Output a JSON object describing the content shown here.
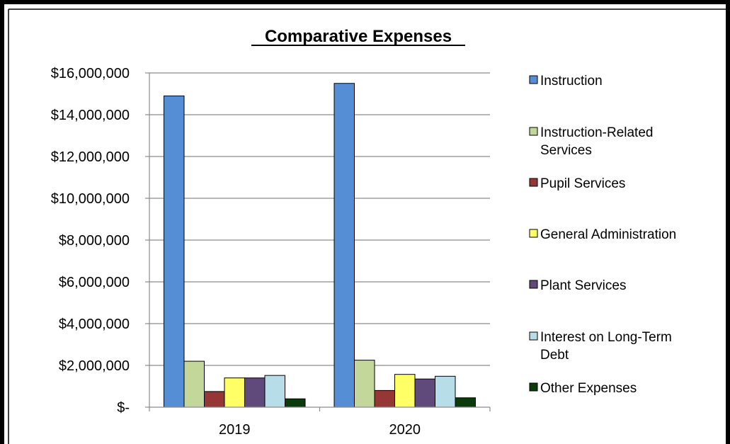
{
  "chart_data": {
    "type": "bar",
    "title": "Comparative Expenses",
    "categories": [
      "2019",
      "2020"
    ],
    "ylim": [
      0,
      16000000
    ],
    "yticks": [
      0,
      2000000,
      4000000,
      6000000,
      8000000,
      10000000,
      12000000,
      14000000,
      16000000
    ],
    "ytick_labels": [
      "$-",
      "$2,000,000",
      "$4,000,000",
      "$6,000,000",
      "$8,000,000",
      "$10,000,000",
      "$12,000,000",
      "$14,000,000",
      "$16,000,000"
    ],
    "grid": true,
    "legend_position": "right",
    "series": [
      {
        "name": "Instruction",
        "legend_lines": [
          "Instruction"
        ],
        "color": "#558ED5",
        "values": [
          14900000,
          15500000
        ]
      },
      {
        "name": "Instruction-Related Services",
        "legend_lines": [
          "Instruction-Related",
          "Services"
        ],
        "color": "#C4D79B",
        "values": [
          2200000,
          2250000
        ]
      },
      {
        "name": "Pupil Services",
        "legend_lines": [
          "Pupil Services"
        ],
        "color": "#953735",
        "values": [
          750000,
          800000
        ]
      },
      {
        "name": "General Administration",
        "legend_lines": [
          "General Administration"
        ],
        "color": "#FFFF66",
        "values": [
          1400000,
          1570000
        ]
      },
      {
        "name": "Plant Services",
        "legend_lines": [
          "Plant Services"
        ],
        "color": "#604A7B",
        "values": [
          1400000,
          1350000
        ]
      },
      {
        "name": "Interest on Long-Term Debt",
        "legend_lines": [
          "Interest on Long-Term",
          "Debt"
        ],
        "color": "#B7DEE8",
        "values": [
          1520000,
          1480000
        ]
      },
      {
        "name": "Other Expenses",
        "legend_lines": [
          "Other Expenses"
        ],
        "color": "#0B3B0B",
        "values": [
          400000,
          450000
        ]
      }
    ]
  }
}
